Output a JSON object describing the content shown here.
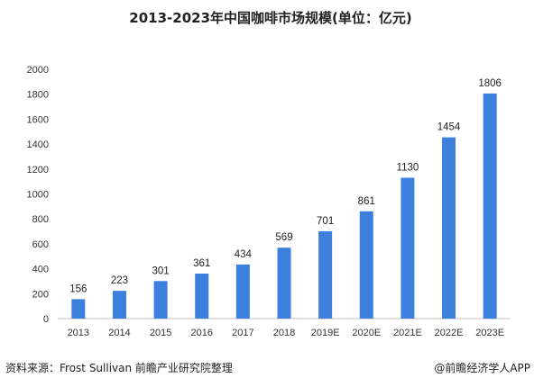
{
  "chart_data": {
    "type": "bar",
    "title": "2013-2023年中国咖啡市场规模(单位：亿元)",
    "categories": [
      "2013",
      "2014",
      "2015",
      "2016",
      "2017",
      "2018",
      "2019E",
      "2020E",
      "2021E",
      "2022E",
      "2023E"
    ],
    "values": [
      156,
      223,
      301,
      361,
      434,
      569,
      701,
      861,
      1130,
      1454,
      1806
    ],
    "ylim": [
      0,
      2000
    ],
    "yticks": [
      0,
      200,
      400,
      600,
      800,
      1000,
      1200,
      1400,
      1600,
      1800,
      2000
    ],
    "bar_color": "#3d7fdc",
    "grid": false,
    "legend": "none"
  },
  "footer": {
    "source": "资料来源：Frost Sullivan 前瞻产业研究院整理",
    "brand": "@前瞻经济学人APP"
  }
}
